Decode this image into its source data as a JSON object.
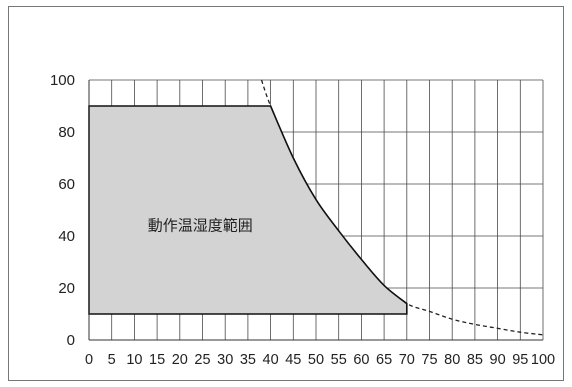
{
  "chart_data": {
    "type": "area",
    "title": "",
    "xlabel": "",
    "ylabel": "",
    "xlim": [
      0,
      100
    ],
    "ylim": [
      0,
      100
    ],
    "x_ticks": [
      0,
      5,
      10,
      15,
      20,
      25,
      30,
      35,
      40,
      45,
      50,
      55,
      60,
      65,
      70,
      75,
      80,
      85,
      90,
      95,
      100
    ],
    "y_ticks": [
      0,
      20,
      40,
      60,
      80,
      100
    ],
    "grid": true,
    "region_label": "動作温湿度範囲",
    "region_fill_color": "#d3d3d3",
    "operating_region": [
      {
        "x": 0,
        "y": 10
      },
      {
        "x": 0,
        "y": 90
      },
      {
        "x": 40,
        "y": 90
      },
      {
        "x": 45,
        "y": 70
      },
      {
        "x": 50,
        "y": 54
      },
      {
        "x": 55,
        "y": 42
      },
      {
        "x": 60,
        "y": 31
      },
      {
        "x": 65,
        "y": 21
      },
      {
        "x": 70,
        "y": 14
      },
      {
        "x": 70,
        "y": 10
      }
    ],
    "dashed_limit_curve": [
      {
        "x": 38,
        "y": 100
      },
      {
        "x": 40,
        "y": 90
      },
      {
        "x": 45,
        "y": 70
      },
      {
        "x": 50,
        "y": 54
      },
      {
        "x": 55,
        "y": 42
      },
      {
        "x": 60,
        "y": 31
      },
      {
        "x": 65,
        "y": 21
      },
      {
        "x": 70,
        "y": 14
      },
      {
        "x": 75,
        "y": 11
      },
      {
        "x": 80,
        "y": 8
      },
      {
        "x": 85,
        "y": 6
      },
      {
        "x": 90,
        "y": 4.5
      },
      {
        "x": 95,
        "y": 3
      },
      {
        "x": 100,
        "y": 2
      }
    ]
  }
}
